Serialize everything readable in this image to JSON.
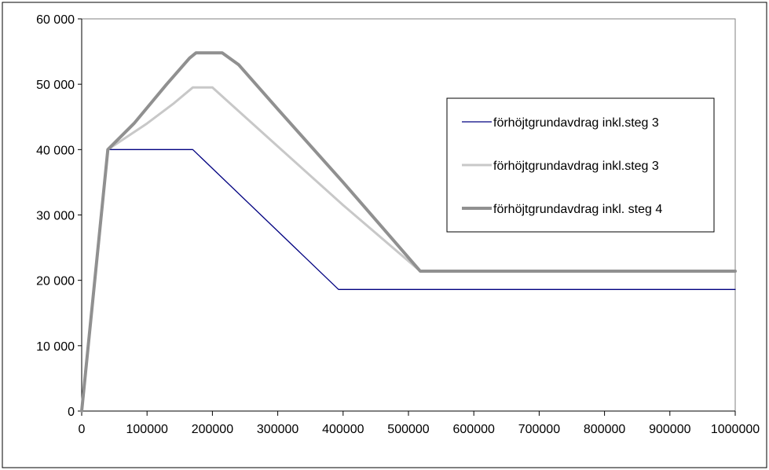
{
  "chart_data": {
    "type": "line",
    "title": "",
    "xlabel": "",
    "ylabel": "",
    "xlim": [
      0,
      1000000
    ],
    "ylim": [
      0,
      60000
    ],
    "x_ticks": [
      0,
      100000,
      200000,
      300000,
      400000,
      500000,
      600000,
      700000,
      800000,
      900000,
      1000000
    ],
    "x_tick_labels": [
      "0",
      "100000",
      "200000",
      "300000",
      "400000",
      "500000",
      "600000",
      "700000",
      "800000",
      "900000",
      "1000000"
    ],
    "y_ticks": [
      0,
      10000,
      20000,
      30000,
      40000,
      50000,
      60000
    ],
    "y_tick_labels": [
      "0",
      "10 000",
      "20 000",
      "30 000",
      "40 000",
      "50 000",
      "60 000"
    ],
    "grid": false,
    "legend_position": "right",
    "series": [
      {
        "name": "förhöjtgrundavdrag inkl.steg 3",
        "color": "#000080",
        "x": [
          0,
          40000,
          170000,
          393000,
          1000000
        ],
        "y": [
          0,
          40000,
          40000,
          18600,
          18600
        ]
      },
      {
        "name": "förhöjtgrundavdrag inkl.steg 3",
        "color": "#c8c8c8",
        "x": [
          0,
          40000,
          100000,
          140000,
          170000,
          200000,
          300000,
          400000,
          518000,
          1000000
        ],
        "y": [
          0,
          40000,
          44000,
          47000,
          49500,
          49500,
          40500,
          31500,
          21400,
          21400
        ]
      },
      {
        "name": "förhöjtgrundavdrag inkl. steg 4",
        "color": "#909090",
        "x": [
          0,
          40000,
          80000,
          130000,
          165000,
          175000,
          215000,
          240000,
          300000,
          400000,
          518000,
          1000000
        ],
        "y": [
          0,
          40000,
          44000,
          50000,
          54000,
          54800,
          54800,
          53000,
          46200,
          35000,
          21400,
          21400
        ]
      }
    ]
  }
}
